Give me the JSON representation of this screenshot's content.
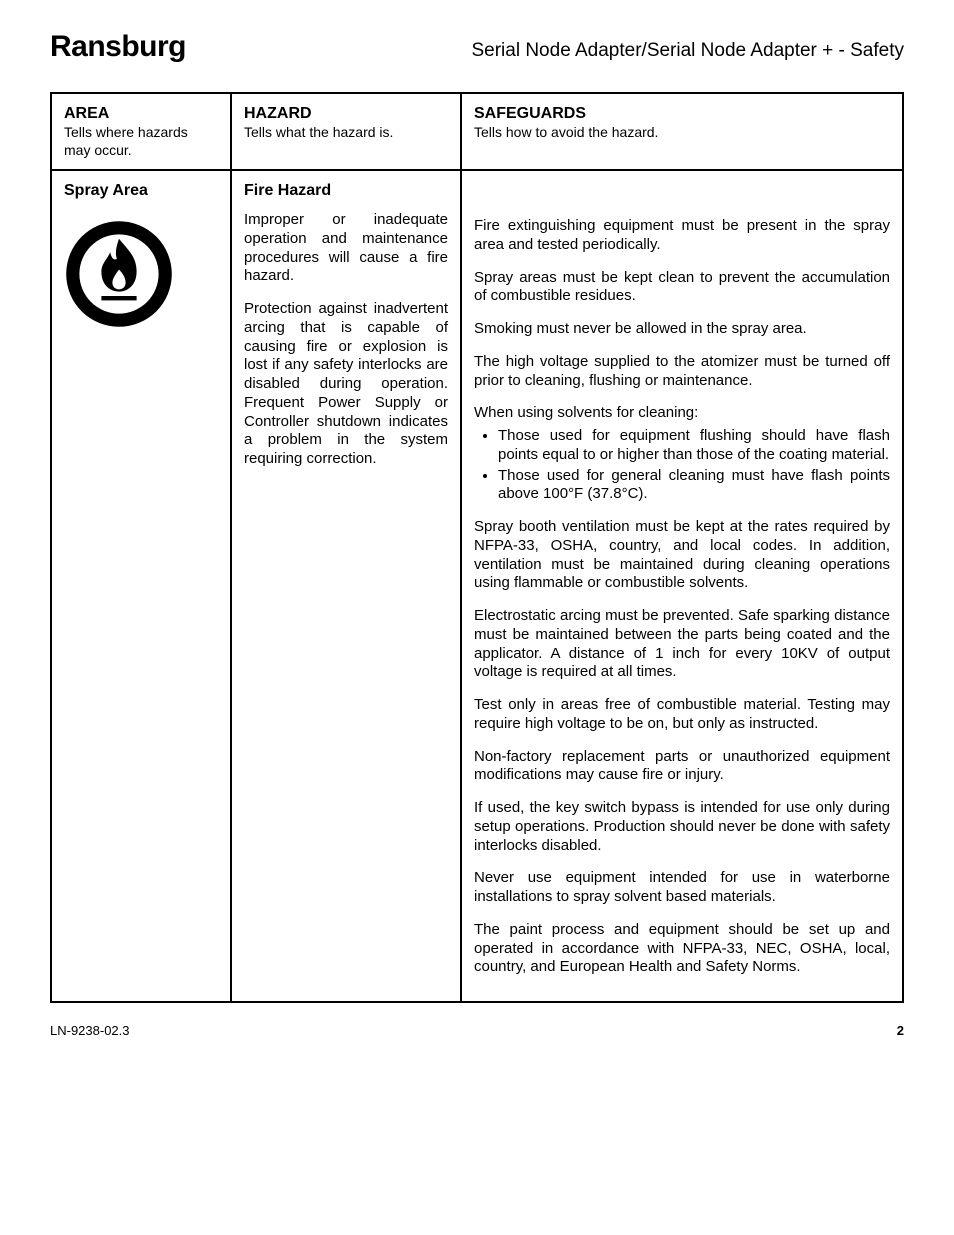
{
  "brand": "Ransburg",
  "doc_title": "Serial Node Adapter/Serial Node Adapter + - Safety",
  "headers": {
    "area": {
      "title": "AREA",
      "sub": "Tells where hazards may occur."
    },
    "hazard": {
      "title": "HAZARD",
      "sub": "Tells what the hazard is."
    },
    "safe": {
      "title": "SAFEGUARDS",
      "sub": "Tells how to avoid the hazard."
    }
  },
  "row": {
    "area_title": "Spray Area",
    "hazard_title": "Fire Hazard",
    "hazard_paras": [
      "Improper or inadequate operation and maintenance procedures will cause a fire hazard.",
      "Protection against inadvertent arcing that is capable of causing fire or explosion is lost if any safety interlocks are disabled during operation. Frequent Power Supply or Controller shutdown indicates a problem in the system requiring correction."
    ],
    "safeguards": [
      {
        "type": "p",
        "text": "Fire extinguishing equipment must be present in the spray area and tested periodically."
      },
      {
        "type": "p",
        "text": "Spray areas must be kept clean to prevent the accumulation of combustible residues."
      },
      {
        "type": "p",
        "text": "Smoking must never be allowed in the spray area."
      },
      {
        "type": "p",
        "text": "The high voltage supplied to the atomizer must be turned off prior to cleaning, flushing or maintenance."
      },
      {
        "type": "intro",
        "text": "When using solvents for cleaning:"
      },
      {
        "type": "ul",
        "items": [
          "Those used for equipment flushing should have flash points equal to or higher than those of the coating material.",
          "Those used for general cleaning must have flash points above 100°F (37.8°C)."
        ]
      },
      {
        "type": "p",
        "text": "Spray booth ventilation must be kept at the rates required by NFPA-33, OSHA, country, and local codes. In addition, ventilation must be maintained during cleaning operations using flammable or combustible solvents."
      },
      {
        "type": "p",
        "text": "Electrostatic arcing must be prevented.  Safe sparking distance must be maintained between the parts being coated and the applicator. A distance of 1 inch for every 10KV of output voltage is required at all times."
      },
      {
        "type": "p",
        "text": "Test only in areas free of combustible material. Testing may require high voltage to be on, but only as instructed."
      },
      {
        "type": "p",
        "text": "Non-factory replacement parts or unauthorized equipment modifications may cause fire or injury."
      },
      {
        "type": "p",
        "text": "If used, the key switch bypass is intended for use only during setup operations. Production should never be done with safety interlocks disabled."
      },
      {
        "type": "p",
        "text": "Never use equipment intended for use in waterborne installations to spray solvent based materials."
      },
      {
        "type": "p",
        "text": "The paint process and equipment should be set up and operated in accordance with NFPA-33, NEC, OSHA, local, country, and European Health and Safety Norms."
      }
    ]
  },
  "footer": {
    "doc_num": "LN-9238-02.3",
    "page": "2"
  },
  "colors": {
    "text": "#000000",
    "border": "#000000",
    "icon_bg": "#000000",
    "icon_fg": "#ffffff"
  }
}
